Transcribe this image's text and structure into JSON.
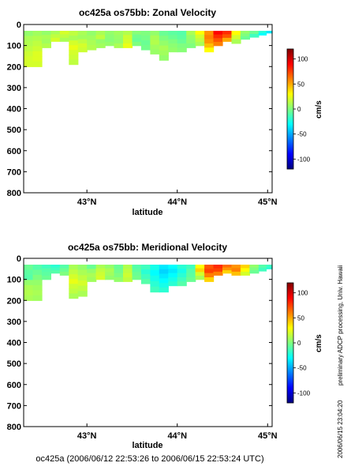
{
  "colors": {
    "cmap": [
      "#00007f",
      "#0000ff",
      "#007fff",
      "#00ffff",
      "#7fff7f",
      "#ffff00",
      "#ff7f00",
      "#ff0000",
      "#7f0000"
    ],
    "background": "#ffffff"
  },
  "chart_data": [
    {
      "type": "heatmap",
      "title": "oc425a os75bb: Zonal Velocity",
      "xlabel": "latitude",
      "ylabel": "",
      "xlim": [
        42.3,
        45.05
      ],
      "ylim": [
        800,
        0
      ],
      "xticks": [
        {
          "v": 43,
          "label": "43°N"
        },
        {
          "v": 44,
          "label": "44°N"
        },
        {
          "v": 45,
          "label": "45°N"
        }
      ],
      "yticks": [
        0,
        100,
        200,
        300,
        400,
        500,
        600,
        700,
        800
      ],
      "colorbar": {
        "label": "cm/s",
        "range": [
          -120,
          120
        ],
        "ticks": [
          100,
          50,
          0,
          -50,
          -100
        ]
      },
      "profiles": [
        {
          "x": 42.35,
          "bottom": 200,
          "u": [
            5,
            10,
            12,
            15,
            18,
            20,
            20
          ]
        },
        {
          "x": 42.45,
          "bottom": 200,
          "u": [
            8,
            12,
            15,
            18,
            22,
            22,
            20
          ]
        },
        {
          "x": 42.55,
          "bottom": 110,
          "u": [
            5,
            10,
            8,
            12
          ]
        },
        {
          "x": 42.65,
          "bottom": 80,
          "u": [
            10,
            15,
            20
          ]
        },
        {
          "x": 42.75,
          "bottom": 80,
          "u": [
            20,
            15,
            10
          ]
        },
        {
          "x": 42.85,
          "bottom": 190,
          "u": [
            15,
            10,
            20,
            25,
            20,
            18,
            15
          ]
        },
        {
          "x": 42.95,
          "bottom": 130,
          "u": [
            10,
            8,
            15,
            20,
            18
          ]
        },
        {
          "x": 43.05,
          "bottom": 120,
          "u": [
            5,
            8,
            10,
            12
          ]
        },
        {
          "x": 43.15,
          "bottom": 110,
          "u": [
            10,
            15,
            5,
            8
          ]
        },
        {
          "x": 43.25,
          "bottom": 100,
          "u": [
            5,
            3,
            2,
            5
          ]
        },
        {
          "x": 43.35,
          "bottom": 110,
          "u": [
            8,
            6,
            5,
            10
          ]
        },
        {
          "x": 43.45,
          "bottom": 110,
          "u": [
            12,
            18,
            20,
            25
          ]
        },
        {
          "x": 43.55,
          "bottom": 100,
          "u": [
            2,
            -3,
            -5,
            0
          ]
        },
        {
          "x": 43.65,
          "bottom": 120,
          "u": [
            0,
            -2,
            -5,
            -3
          ]
        },
        {
          "x": 43.75,
          "bottom": 140,
          "u": [
            5,
            10,
            12,
            8,
            6
          ]
        },
        {
          "x": 43.85,
          "bottom": 170,
          "u": [
            -5,
            0,
            5,
            10,
            8,
            5
          ]
        },
        {
          "x": 43.95,
          "bottom": 130,
          "u": [
            -8,
            -5,
            0,
            3,
            5
          ]
        },
        {
          "x": 44.05,
          "bottom": 130,
          "u": [
            -10,
            -8,
            -5,
            0,
            2
          ]
        },
        {
          "x": 44.15,
          "bottom": 110,
          "u": [
            10,
            5,
            3,
            0
          ]
        },
        {
          "x": 44.25,
          "bottom": 100,
          "u": [
            30,
            20,
            15,
            10
          ]
        },
        {
          "x": 44.35,
          "bottom": 130,
          "u": [
            55,
            60,
            55,
            45,
            30
          ]
        },
        {
          "x": 44.45,
          "bottom": 100,
          "u": [
            90,
            80,
            70,
            60
          ]
        },
        {
          "x": 44.55,
          "bottom": 80,
          "u": [
            80,
            70,
            50
          ]
        },
        {
          "x": 44.65,
          "bottom": 90,
          "u": [
            30,
            20,
            10
          ]
        },
        {
          "x": 44.75,
          "bottom": 70,
          "u": [
            5,
            0,
            -5
          ]
        },
        {
          "x": 44.85,
          "bottom": 60,
          "u": [
            -5,
            -15
          ]
        },
        {
          "x": 44.95,
          "bottom": 50,
          "u": [
            -20,
            -30
          ]
        },
        {
          "x": 45.02,
          "bottom": 40,
          "u": [
            -35
          ]
        }
      ]
    },
    {
      "type": "heatmap",
      "title": "oc425a os75bb: Meridional Velocity",
      "xlabel": "latitude",
      "ylabel": "",
      "xlim": [
        42.3,
        45.05
      ],
      "ylim": [
        800,
        0
      ],
      "xticks": [
        {
          "v": 43,
          "label": "43°N"
        },
        {
          "v": 44,
          "label": "44°N"
        },
        {
          "v": 45,
          "label": "45°N"
        }
      ],
      "yticks": [
        0,
        100,
        200,
        300,
        400,
        500,
        600,
        700,
        800
      ],
      "colorbar": {
        "label": "cm/s",
        "range": [
          -120,
          120
        ],
        "ticks": [
          100,
          50,
          0,
          -50,
          -100
        ]
      },
      "profiles": [
        {
          "x": 42.35,
          "bottom": 200,
          "u": [
            -5,
            -8,
            -10,
            5,
            10,
            12,
            10
          ]
        },
        {
          "x": 42.45,
          "bottom": 200,
          "u": [
            -10,
            -5,
            0,
            5,
            8,
            10,
            8
          ]
        },
        {
          "x": 42.55,
          "bottom": 100,
          "u": [
            -15,
            -10,
            -8,
            -5
          ]
        },
        {
          "x": 42.65,
          "bottom": 70,
          "u": [
            -20,
            -15,
            -10
          ]
        },
        {
          "x": 42.75,
          "bottom": 80,
          "u": [
            -10,
            -5,
            0
          ]
        },
        {
          "x": 42.85,
          "bottom": 190,
          "u": [
            10,
            15,
            20,
            25,
            18,
            15,
            10
          ]
        },
        {
          "x": 42.95,
          "bottom": 180,
          "u": [
            5,
            10,
            15,
            20,
            15,
            10
          ]
        },
        {
          "x": 43.05,
          "bottom": 110,
          "u": [
            -5,
            5,
            10,
            8
          ]
        },
        {
          "x": 43.15,
          "bottom": 100,
          "u": [
            10,
            15,
            18,
            20
          ]
        },
        {
          "x": 43.25,
          "bottom": 100,
          "u": [
            5,
            10,
            8,
            5
          ]
        },
        {
          "x": 43.35,
          "bottom": 110,
          "u": [
            -5,
            -3,
            0,
            5
          ]
        },
        {
          "x": 43.45,
          "bottom": 110,
          "u": [
            12,
            15,
            18,
            15
          ]
        },
        {
          "x": 43.55,
          "bottom": 100,
          "u": [
            -10,
            -8,
            -5,
            -3
          ]
        },
        {
          "x": 43.65,
          "bottom": 120,
          "u": [
            -15,
            -20,
            -15,
            -10
          ]
        },
        {
          "x": 43.75,
          "bottom": 160,
          "u": [
            -25,
            -30,
            -25,
            -20,
            -15
          ]
        },
        {
          "x": 43.85,
          "bottom": 160,
          "u": [
            -35,
            -40,
            -35,
            -30,
            -25,
            -20
          ]
        },
        {
          "x": 43.95,
          "bottom": 130,
          "u": [
            -30,
            -35,
            -30,
            -25,
            -20
          ]
        },
        {
          "x": 44.05,
          "bottom": 130,
          "u": [
            -20,
            -25,
            -20,
            -15,
            -10
          ]
        },
        {
          "x": 44.15,
          "bottom": 110,
          "u": [
            -15,
            -10,
            -8,
            -5
          ]
        },
        {
          "x": 44.25,
          "bottom": 100,
          "u": [
            30,
            40,
            20,
            10
          ]
        },
        {
          "x": 44.35,
          "bottom": 110,
          "u": [
            70,
            75,
            60,
            40
          ]
        },
        {
          "x": 44.45,
          "bottom": 80,
          "u": [
            80,
            75,
            60
          ]
        },
        {
          "x": 44.55,
          "bottom": 70,
          "u": [
            65,
            55,
            40
          ]
        },
        {
          "x": 44.65,
          "bottom": 80,
          "u": [
            55,
            60,
            45
          ]
        },
        {
          "x": 44.75,
          "bottom": 80,
          "u": [
            40,
            30,
            20
          ]
        },
        {
          "x": 44.85,
          "bottom": 70,
          "u": [
            5,
            0,
            -5
          ]
        },
        {
          "x": 44.95,
          "bottom": 60,
          "u": [
            -10,
            -15
          ]
        },
        {
          "x": 45.02,
          "bottom": 50,
          "u": [
            -15,
            -20
          ]
        }
      ]
    }
  ],
  "side_note": "preliminary ADCP processing,  Univ. Hawaii",
  "date_stamp": "2006/06/15 23:04:20",
  "footer": "oc425a (2006/06/12 22:53:26 to 2006/06/15 22:53:24 UTC)"
}
